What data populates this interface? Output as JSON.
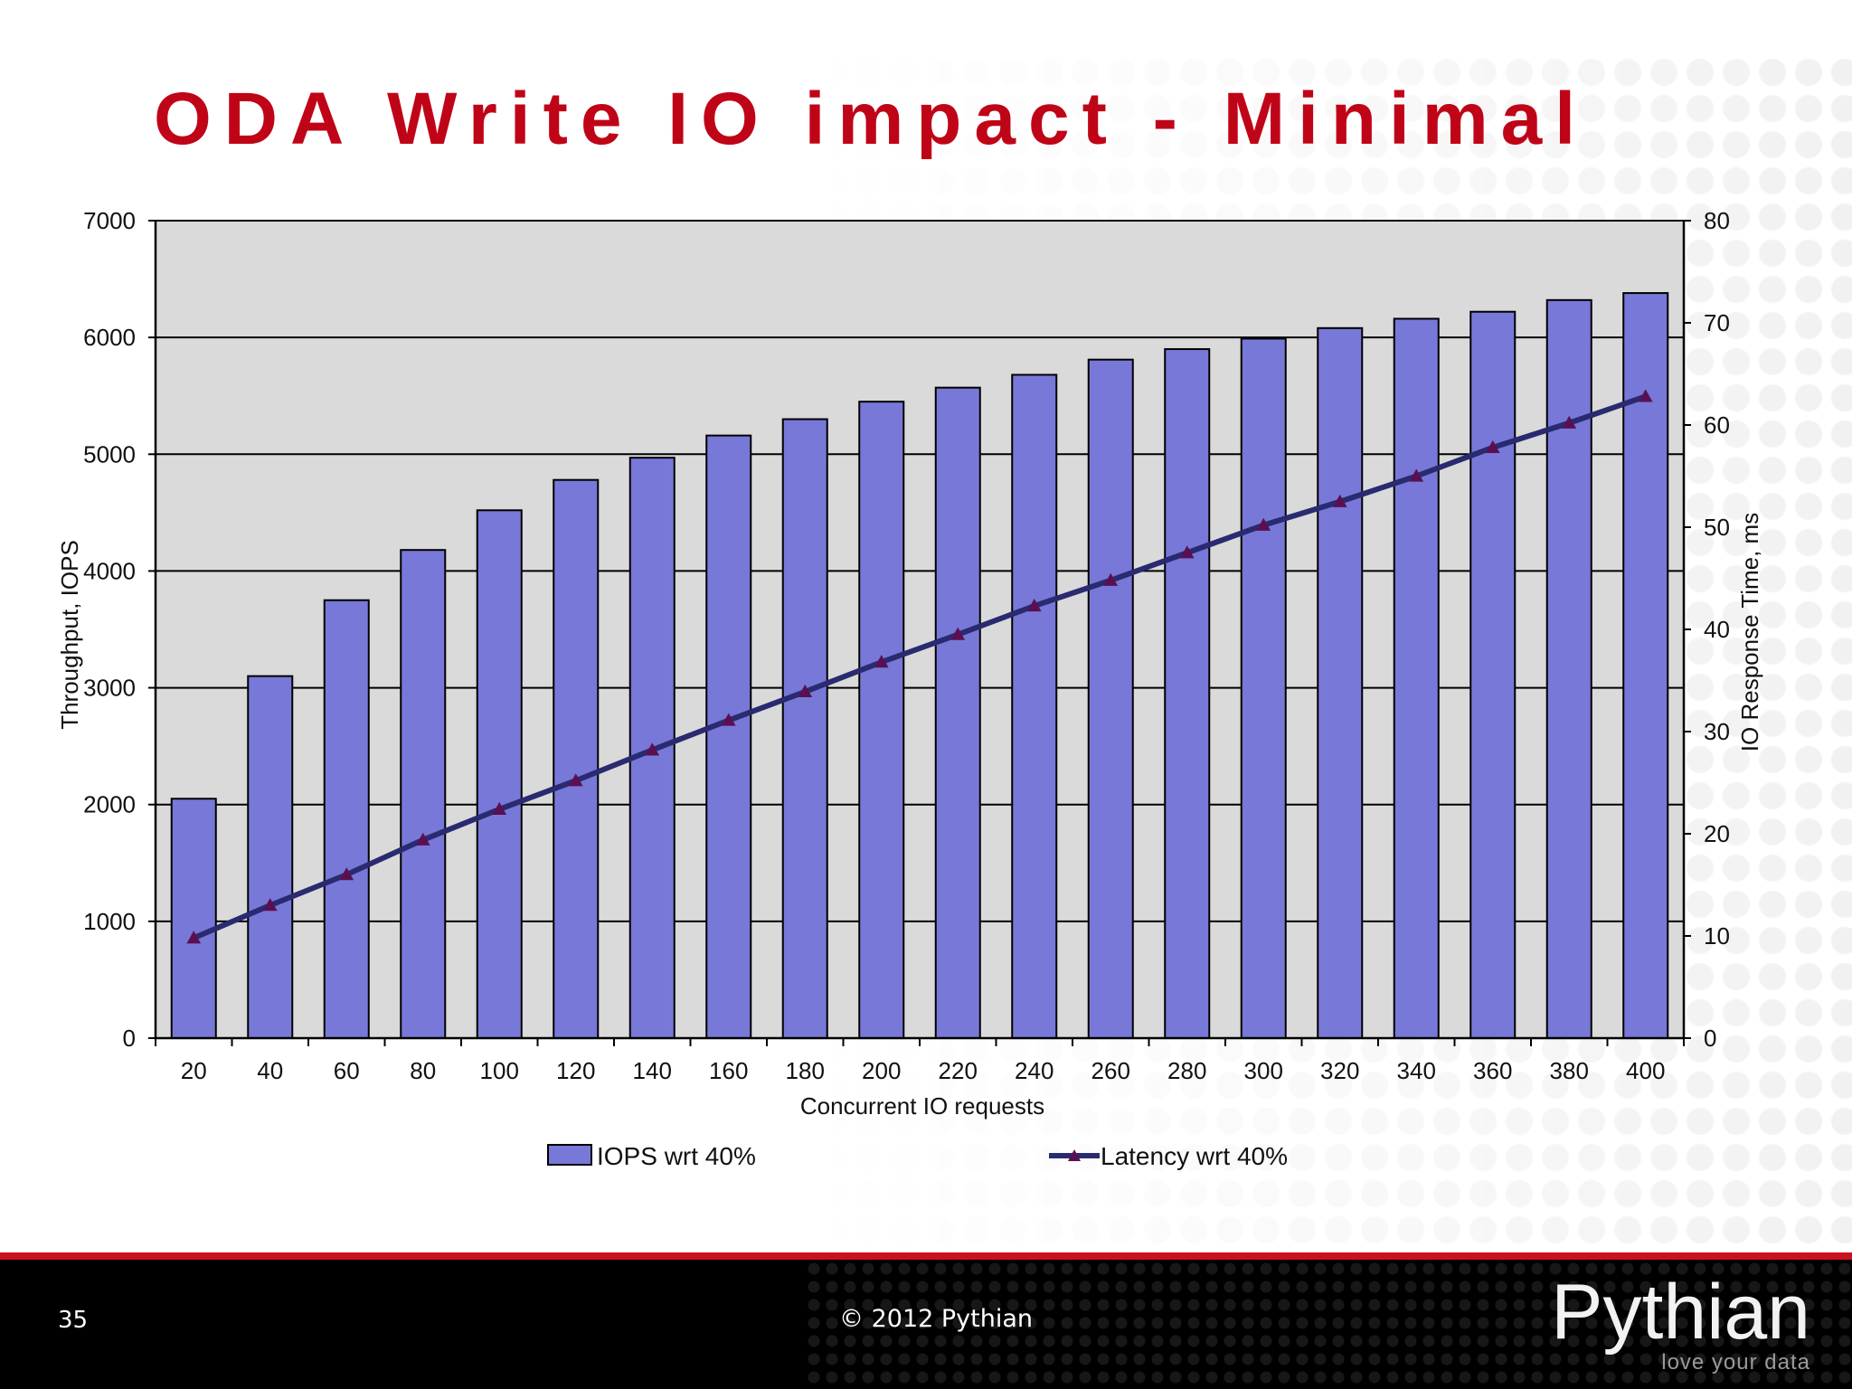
{
  "slide": {
    "title": "ODA Write IO impact - Minimal",
    "page_number": "35",
    "copyright": "© 2012 Pythian",
    "brand": "Pythian",
    "tagline": "love your data"
  },
  "colors": {
    "title": "#c00418",
    "bar_fill": "#7878d8",
    "line": "#2a2a70",
    "marker": "#5a1050",
    "plot_bg": "#dadada",
    "footer_bg": "#000000",
    "footer_rule": "#cc1020"
  },
  "chart_data": {
    "type": "bar",
    "title": "",
    "xlabel": "Concurrent IO requests",
    "ylabel": "Throughput, IOPS",
    "y2label": "IO Response Time, ms",
    "ylim": [
      0,
      7000
    ],
    "y2lim": [
      0,
      80
    ],
    "yticks": [
      0,
      1000,
      2000,
      3000,
      4000,
      5000,
      6000,
      7000
    ],
    "y2ticks": [
      0,
      10,
      20,
      30,
      40,
      50,
      60,
      70,
      80
    ],
    "grid": true,
    "legend_position": "bottom-center",
    "categories": [
      "20",
      "40",
      "60",
      "80",
      "100",
      "120",
      "140",
      "160",
      "180",
      "200",
      "220",
      "240",
      "260",
      "280",
      "300",
      "320",
      "340",
      "360",
      "380",
      "400"
    ],
    "series": [
      {
        "name": "IOPS wrt 40%",
        "type": "bar",
        "axis": "left",
        "values": [
          2050,
          3100,
          3750,
          4180,
          4520,
          4780,
          4970,
          5160,
          5300,
          5450,
          5570,
          5680,
          5810,
          5900,
          5990,
          6080,
          6160,
          6220,
          6320,
          6380
        ]
      },
      {
        "name": "Latency wrt 40%",
        "type": "line",
        "axis": "right",
        "marker": "triangle",
        "values": [
          9.8,
          13.0,
          16.0,
          19.4,
          22.4,
          25.2,
          28.2,
          31.1,
          33.9,
          36.8,
          39.5,
          42.3,
          44.8,
          47.5,
          50.2,
          52.5,
          55.0,
          57.8,
          60.2,
          62.8
        ]
      }
    ]
  }
}
